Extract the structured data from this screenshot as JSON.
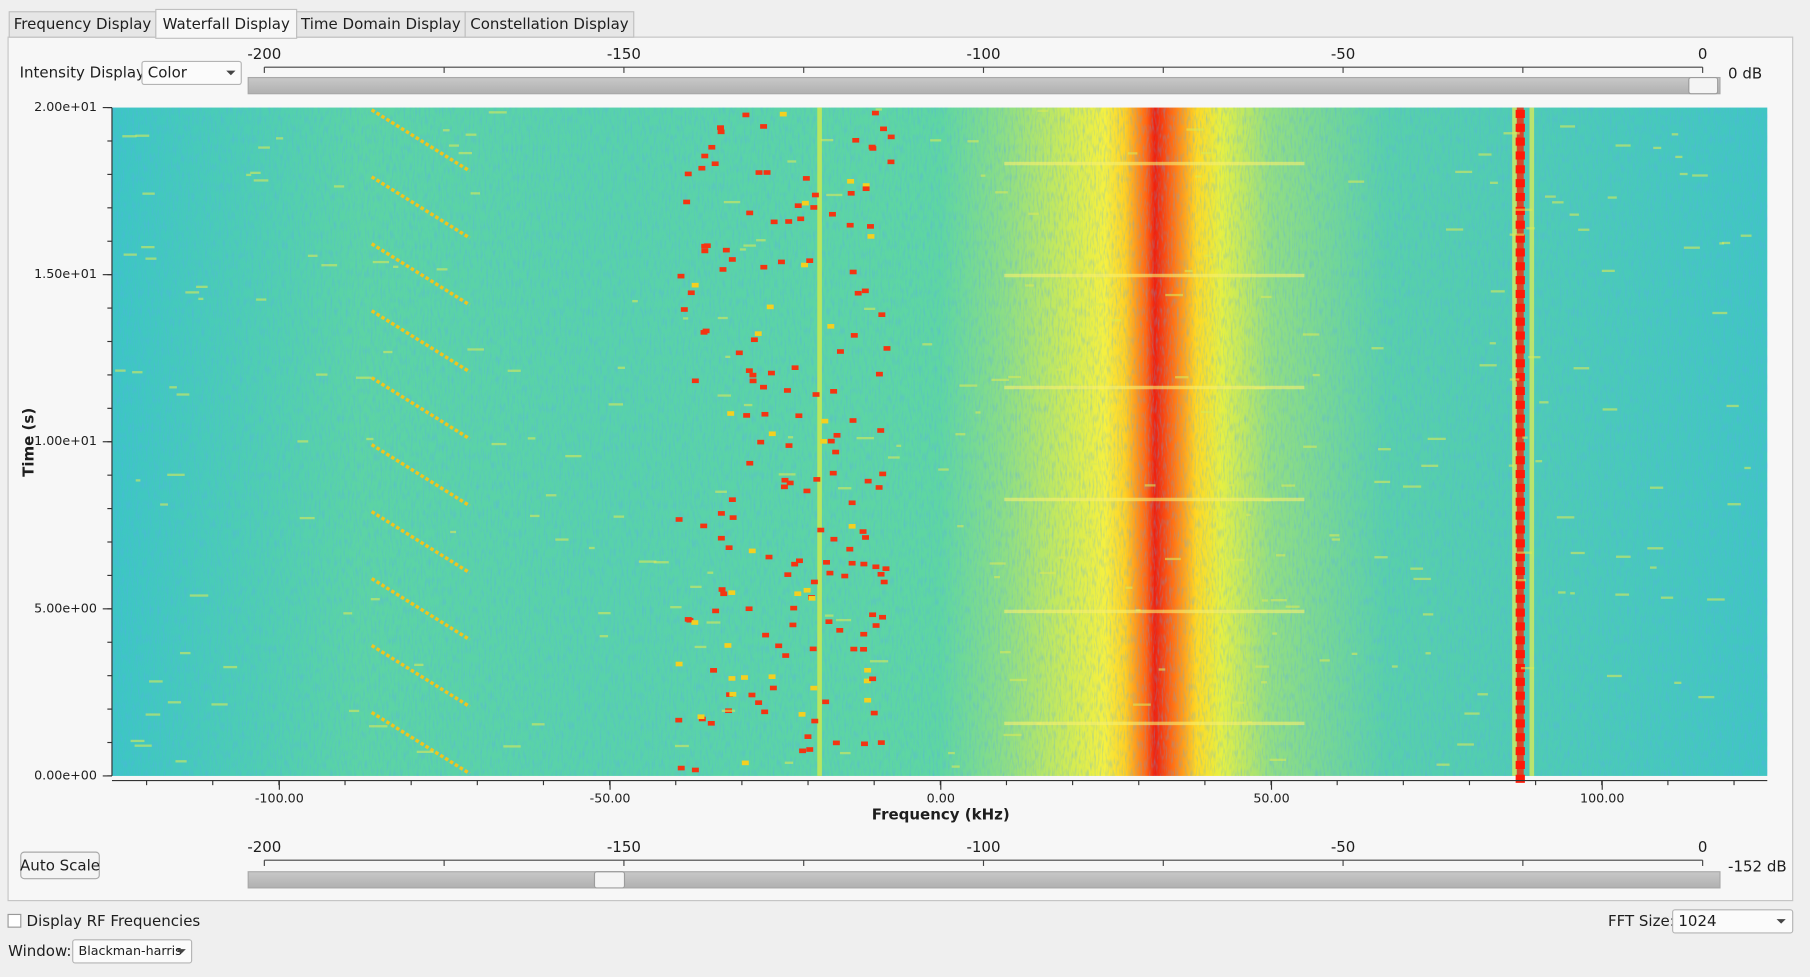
{
  "tabs": [
    "Frequency Display",
    "Waterfall Display",
    "Time Domain Display",
    "Constellation Display"
  ],
  "intensity": {
    "label": "Intensity Display:",
    "value": "Color"
  },
  "top_slider": {
    "ticks": [
      "-200",
      "-150",
      "-100",
      "-50",
      "0"
    ],
    "readout": "0 dB"
  },
  "plot": {
    "y_label": "Time (s)",
    "y_ticks": [
      "2.00e+01",
      "1.50e+01",
      "1.00e+01",
      "5.00e+00",
      "0.00e+00"
    ],
    "x_label": "Frequency (kHz)",
    "x_ticks": [
      "-100.00",
      "-50.00",
      "0.00",
      "50.00",
      "100.00"
    ]
  },
  "auto_scale": "Auto Scale",
  "bottom_slider": {
    "ticks": [
      "-200",
      "-150",
      "-100",
      "-50",
      "0"
    ],
    "readout": "-152 dB"
  },
  "rf_checkbox": "Display RF Frequencies",
  "fft": {
    "label": "FFT Size:",
    "value": "1024"
  },
  "window": {
    "label": "Window:",
    "value": "Blackman-harris"
  }
}
